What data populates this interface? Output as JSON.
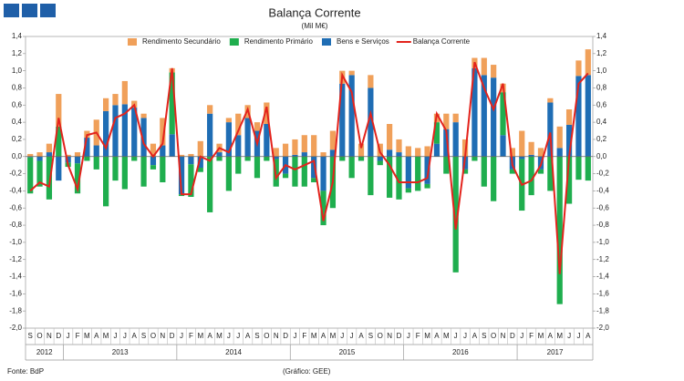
{
  "chart_data": {
    "type": "bar-line",
    "title": "Balança Corrente",
    "subtitle": "(Mil M€)",
    "source": "Fonte: BdP",
    "credit": "(Gráfico: GEE)",
    "categories": [
      "S",
      "O",
      "N",
      "D",
      "J",
      "F",
      "M",
      "A",
      "M",
      "J",
      "J",
      "A",
      "S",
      "O",
      "N",
      "D",
      "J",
      "F",
      "M",
      "A",
      "M",
      "J",
      "J",
      "A",
      "S",
      "O",
      "N",
      "D",
      "J",
      "F",
      "M",
      "A",
      "M",
      "J",
      "J",
      "A",
      "S",
      "O",
      "N",
      "D",
      "J",
      "F",
      "M",
      "A",
      "M",
      "J",
      "J",
      "A",
      "S",
      "O",
      "N",
      "D",
      "J",
      "F",
      "M",
      "A",
      "M",
      "J",
      "J",
      "A"
    ],
    "years": [
      "2012",
      "2013",
      "2014",
      "2015",
      "2016",
      "2017"
    ],
    "series": [
      {
        "name": "Bens e Serviços",
        "color": "#1f6db4",
        "kind": "bar",
        "values": [
          -0.01,
          -0.05,
          0.05,
          -0.28,
          -0.07,
          -0.08,
          0.22,
          0.13,
          0.53,
          0.6,
          0.61,
          0.57,
          0.45,
          -0.1,
          0.13,
          0.26,
          -0.44,
          -0.09,
          -0.13,
          0.5,
          0.05,
          0.4,
          0.25,
          0.45,
          0.3,
          0.38,
          -0.03,
          -0.2,
          0.02,
          0.05,
          -0.25,
          -0.4,
          0.08,
          0.85,
          0.95,
          0.0,
          0.8,
          -0.05,
          0.08,
          0.05,
          -0.37,
          0.0,
          -0.32,
          0.15,
          0.32,
          0.4,
          -0.15,
          1.03,
          0.95,
          0.92,
          0.25,
          -0.15,
          -0.03,
          0.02,
          -0.15,
          0.63,
          0.1,
          0.37,
          0.94,
          0.95
        ]
      },
      {
        "name": "Rendimento Primário",
        "color": "#1fae4e",
        "kind": "bar",
        "values": [
          -0.42,
          -0.3,
          -0.5,
          0.35,
          -0.05,
          -0.35,
          -0.05,
          -0.15,
          -0.58,
          -0.28,
          -0.38,
          -0.05,
          -0.35,
          -0.05,
          -0.3,
          0.72,
          -0.02,
          -0.38,
          -0.05,
          -0.65,
          -0.05,
          -0.4,
          -0.2,
          -0.05,
          -0.25,
          -0.05,
          -0.32,
          -0.05,
          -0.35,
          -0.35,
          -0.05,
          -0.4,
          -0.6,
          -0.05,
          -0.25,
          -0.05,
          -0.45,
          -0.05,
          -0.48,
          -0.5,
          -0.05,
          -0.4,
          -0.05,
          0.25,
          -0.2,
          -1.35,
          -0.05,
          -0.05,
          -0.35,
          -0.52,
          0.5,
          -0.05,
          -0.6,
          -0.45,
          -0.05,
          -0.4,
          -1.72,
          -0.55,
          -0.27,
          -0.28
        ]
      },
      {
        "name": "Rendimento Secundário",
        "color": "#f0a05a",
        "kind": "bar",
        "values": [
          0.03,
          0.05,
          0.1,
          0.38,
          0.02,
          0.05,
          0.08,
          0.3,
          0.15,
          0.13,
          0.27,
          0.08,
          0.05,
          0.15,
          0.32,
          0.05,
          0.02,
          0.03,
          0.18,
          0.1,
          0.1,
          0.05,
          0.25,
          0.15,
          0.1,
          0.25,
          0.1,
          0.15,
          0.18,
          0.2,
          0.25,
          0.05,
          0.22,
          0.15,
          0.05,
          0.15,
          0.15,
          0.15,
          0.3,
          0.15,
          0.12,
          0.1,
          0.12,
          0.1,
          0.18,
          0.1,
          0.2,
          0.12,
          0.2,
          0.15,
          0.1,
          0.1,
          0.3,
          0.15,
          0.1,
          0.05,
          0.25,
          0.18,
          0.18,
          0.3
        ]
      },
      {
        "name": "Balança Corrente",
        "color": "#e3231c",
        "kind": "line",
        "values": [
          -0.4,
          -0.3,
          -0.35,
          0.45,
          -0.1,
          -0.38,
          0.25,
          0.28,
          0.1,
          0.45,
          0.5,
          0.6,
          0.15,
          0.0,
          0.15,
          1.03,
          -0.44,
          -0.44,
          0.0,
          -0.05,
          0.1,
          0.05,
          0.3,
          0.55,
          0.15,
          0.58,
          -0.25,
          -0.1,
          -0.15,
          -0.1,
          -0.05,
          -0.75,
          -0.3,
          0.95,
          0.75,
          0.1,
          0.5,
          0.05,
          -0.1,
          -0.3,
          -0.3,
          -0.3,
          -0.25,
          0.5,
          0.3,
          -0.85,
          0.0,
          1.1,
          0.8,
          0.55,
          0.85,
          -0.1,
          -0.33,
          -0.28,
          -0.1,
          0.28,
          -1.37,
          0.0,
          0.85,
          0.97
        ]
      }
    ],
    "legend_order": [
      2,
      1,
      0,
      3
    ],
    "ylim": [
      -2.0,
      1.4
    ],
    "yticks": [
      {
        "value": -2.0,
        "label": "-2,0"
      },
      {
        "value": -1.8,
        "label": "-1,8"
      },
      {
        "value": -1.6,
        "label": "-1,6"
      },
      {
        "value": -1.4,
        "label": "-1,4"
      },
      {
        "value": -1.2,
        "label": "-1,2"
      },
      {
        "value": -1.0,
        "label": "-1,0"
      },
      {
        "value": -0.8,
        "label": "-0,8"
      },
      {
        "value": -0.6,
        "label": "-0,6"
      },
      {
        "value": -0.4,
        "label": "-0,4"
      },
      {
        "value": -0.2,
        "label": "-0,2"
      },
      {
        "value": 0,
        "label": "0,0"
      },
      {
        "value": 0.2,
        "label": "0,2"
      },
      {
        "value": 0.4,
        "label": "0,4"
      },
      {
        "value": 0.6,
        "label": "0,6"
      },
      {
        "value": 0.8,
        "label": "0,8"
      },
      {
        "value": 1.0,
        "label": "1,0"
      },
      {
        "value": 1.2,
        "label": "1,2"
      },
      {
        "value": 1.4,
        "label": "1,4"
      }
    ],
    "y2lim": [
      -2.0,
      1.4
    ],
    "y2ticks": [
      {
        "value": -2.0,
        "label": "-2,0"
      },
      {
        "value": -1.8,
        "label": "-1,8"
      },
      {
        "value": -1.6,
        "label": "-1,6"
      },
      {
        "value": -1.4,
        "label": "-1,4"
      },
      {
        "value": -1.2,
        "label": "-1,2"
      },
      {
        "value": -1.0,
        "label": "-1,0"
      },
      {
        "value": -0.8,
        "label": "-0,8"
      },
      {
        "value": -0.6,
        "label": "-0,6"
      },
      {
        "value": -0.4,
        "label": "-0,4"
      },
      {
        "value": -0.2,
        "label": "-0,2"
      },
      {
        "value": 0,
        "label": "0,0"
      },
      {
        "value": 0.2,
        "label": "0,2"
      },
      {
        "value": 0.4,
        "label": "0,4"
      },
      {
        "value": 0.6,
        "label": "0,6"
      },
      {
        "value": 0.8,
        "label": "0,8"
      },
      {
        "value": 1.0,
        "label": "1,0"
      },
      {
        "value": 1.2,
        "label": "1,2"
      },
      {
        "value": 1.4,
        "label": "1,4"
      }
    ]
  }
}
